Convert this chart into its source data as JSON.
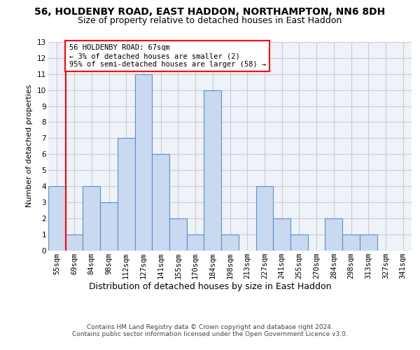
{
  "title1": "56, HOLDENBY ROAD, EAST HADDON, NORTHAMPTON, NN6 8DH",
  "title2": "Size of property relative to detached houses in East Haddon",
  "xlabel": "Distribution of detached houses by size in East Haddon",
  "ylabel": "Number of detached properties",
  "categories": [
    "55sqm",
    "69sqm",
    "84sqm",
    "98sqm",
    "112sqm",
    "127sqm",
    "141sqm",
    "155sqm",
    "170sqm",
    "184sqm",
    "198sqm",
    "213sqm",
    "227sqm",
    "241sqm",
    "255sqm",
    "270sqm",
    "284sqm",
    "298sqm",
    "313sqm",
    "327sqm",
    "341sqm"
  ],
  "values": [
    4,
    1,
    4,
    3,
    7,
    11,
    6,
    2,
    1,
    10,
    1,
    0,
    4,
    2,
    1,
    0,
    2,
    1,
    1,
    0,
    0
  ],
  "bar_color": "#c9d9f0",
  "bar_edge_color": "#5b8fc9",
  "annotation_text": "56 HOLDENBY ROAD: 67sqm\n← 3% of detached houses are smaller (2)\n95% of semi-detached houses are larger (58) →",
  "annotation_box_color": "white",
  "annotation_box_edge_color": "red",
  "vline_color": "red",
  "ylim": [
    0,
    13
  ],
  "yticks": [
    0,
    1,
    2,
    3,
    4,
    5,
    6,
    7,
    8,
    9,
    10,
    11,
    12,
    13
  ],
  "grid_color": "#cccccc",
  "background_color": "#eef2f9",
  "footer_text": "Contains HM Land Registry data © Crown copyright and database right 2024.\nContains public sector information licensed under the Open Government Licence v3.0.",
  "title_fontsize": 10,
  "subtitle_fontsize": 9,
  "xlabel_fontsize": 9,
  "ylabel_fontsize": 8,
  "tick_fontsize": 7.5,
  "annotation_fontsize": 7.5,
  "footer_fontsize": 6.5
}
